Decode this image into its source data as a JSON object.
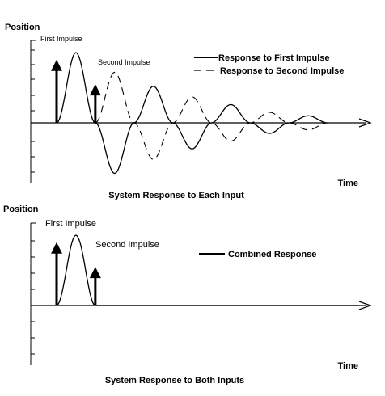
{
  "chart_data": [
    {
      "type": "line",
      "ylabel": "Position",
      "xlabel": "Time",
      "caption": "System Response to Each Input",
      "annotations": {
        "first": "First Impulse",
        "second": "Second Impulse"
      },
      "legend": {
        "placement": "top-right",
        "entries": [
          "Response to First Impulse",
          "Response to Second Impulse"
        ]
      },
      "impulses": [
        {
          "name": "First Impulse",
          "t": 0.0,
          "amplitude": 0.9
        },
        {
          "name": "Second Impulse",
          "t": 1.0,
          "amplitude": 0.55
        }
      ],
      "series": [
        {
          "name": "Response to First Impulse",
          "style": "solid",
          "x": [
            0,
            0.5,
            1.0,
            1.5,
            2.0,
            2.5,
            3.0,
            3.5,
            4.0,
            4.5,
            5.0,
            5.5,
            6.0,
            6.5,
            7.0
          ],
          "y": [
            0,
            1.0,
            0,
            -0.72,
            0,
            0.52,
            0,
            -0.37,
            0,
            0.26,
            0,
            -0.15,
            0,
            0.1,
            0
          ]
        },
        {
          "name": "Response to Second Impulse",
          "style": "dashed",
          "x": [
            1.0,
            1.5,
            2.0,
            2.5,
            3.0,
            3.5,
            4.0,
            4.5,
            5.0,
            5.5,
            6.0,
            6.5,
            7.0
          ],
          "y": [
            0,
            0.72,
            0,
            -0.52,
            0,
            0.37,
            0,
            -0.26,
            0,
            0.15,
            0,
            -0.1,
            0
          ]
        }
      ],
      "xlim": [
        0,
        7.8
      ],
      "ylim": [
        -0.85,
        1.2
      ],
      "grid": false
    },
    {
      "type": "line",
      "ylabel": "Position",
      "xlabel": "Time",
      "caption": "System Response to Both Inputs",
      "annotations": {
        "first": "First Impulse",
        "second": "Second Impulse"
      },
      "legend": {
        "placement": "top-right",
        "entries": [
          "Combined Response"
        ]
      },
      "impulses": [
        {
          "name": "First Impulse",
          "t": 0.0,
          "amplitude": 0.9
        },
        {
          "name": "Second Impulse",
          "t": 1.0,
          "amplitude": 0.55
        }
      ],
      "series": [
        {
          "name": "Combined Response",
          "style": "solid",
          "x": [
            0,
            0.5,
            1.0,
            1.5,
            2.0,
            3.0,
            4.0,
            5.0,
            6.0,
            7.0,
            7.8
          ],
          "y": [
            0,
            1.0,
            0,
            0,
            0,
            0,
            0,
            0,
            0,
            0,
            0
          ]
        }
      ],
      "xlim": [
        0,
        7.8
      ],
      "ylim": [
        -0.85,
        1.2
      ],
      "grid": false
    }
  ]
}
